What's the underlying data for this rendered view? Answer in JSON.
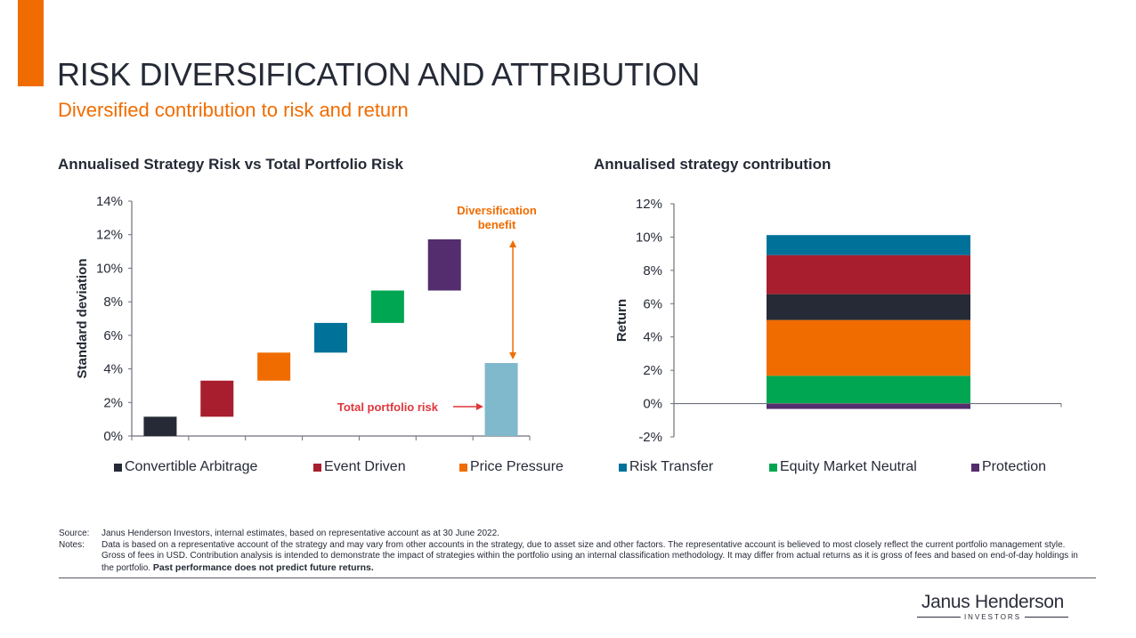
{
  "header": {
    "title": "RISK DIVERSIFICATION AND ATTRIBUTION",
    "subtitle": "Diversified contribution to risk and return",
    "accent_color": "#f06c00"
  },
  "colors": {
    "Convertible Arbitrage": "#252a36",
    "Event Driven": "#a81e2e",
    "Price Pressure": "#f06c00",
    "Risk Transfer": "#00729a",
    "Equity Market Neutral": "#00a651",
    "Protection": "#532d6d",
    "Total portfolio risk": "#80b8cc",
    "annotation_orange": "#f06c00",
    "annotation_red": "#e0373c"
  },
  "legend": [
    {
      "label": "Convertible Arbitrage",
      "color": "#252a36"
    },
    {
      "label": "Event Driven",
      "color": "#a81e2e"
    },
    {
      "label": "Price Pressure",
      "color": "#f06c00"
    },
    {
      "label": "Risk Transfer",
      "color": "#00729a"
    },
    {
      "label": "Equity Market Neutral",
      "color": "#00a651"
    },
    {
      "label": "Protection",
      "color": "#532d6d"
    }
  ],
  "chart_data": [
    {
      "type": "bar",
      "subtype": "waterfall",
      "title": "Annualised Strategy Risk vs Total Portfolio Risk",
      "xlabel": "",
      "ylabel": "Standard deviation",
      "ylim": [
        0,
        14
      ],
      "yticks": [
        "0%",
        "2%",
        "4%",
        "6%",
        "8%",
        "10%",
        "12%",
        "14%"
      ],
      "ytick_values": [
        0,
        2,
        4,
        6,
        8,
        10,
        12,
        14
      ],
      "grid": false,
      "categories": [
        "Convertible Arbitrage",
        "Event Driven",
        "Price Pressure",
        "Risk Transfer",
        "Equity Market Neutral",
        "Protection",
        "Total portfolio risk"
      ],
      "bars": [
        {
          "name": "Convertible Arbitrage",
          "start": 0.0,
          "end": 1.15
        },
        {
          "name": "Event Driven",
          "start": 1.15,
          "end": 3.3
        },
        {
          "name": "Price Pressure",
          "start": 3.3,
          "end": 4.97
        },
        {
          "name": "Risk Transfer",
          "start": 4.97,
          "end": 6.74
        },
        {
          "name": "Equity Market Neutral",
          "start": 6.74,
          "end": 8.67
        },
        {
          "name": "Protection",
          "start": 8.67,
          "end": 11.72
        },
        {
          "name": "Total portfolio risk",
          "start": 0.0,
          "end": 4.35
        }
      ],
      "annotations": [
        {
          "text_lines": [
            "Diversification",
            "benefit"
          ],
          "type": "double-arrow",
          "from": 4.35,
          "to": 11.72
        },
        {
          "text": "Total portfolio risk",
          "type": "arrow-right",
          "at": 1.7
        }
      ]
    },
    {
      "type": "bar",
      "subtype": "stacked",
      "title": "Annualised strategy contribution",
      "xlabel": "",
      "ylabel": "Return",
      "ylim": [
        -2,
        12
      ],
      "yticks": [
        "-2%",
        "0%",
        "2%",
        "4%",
        "6%",
        "8%",
        "10%",
        "12%"
      ],
      "ytick_values": [
        -2,
        0,
        2,
        4,
        6,
        8,
        10,
        12
      ],
      "grid": false,
      "legend_position": "bottom",
      "stack_order_positive": [
        "Equity Market Neutral",
        "Price Pressure",
        "Convertible Arbitrage",
        "Event Driven",
        "Risk Transfer"
      ],
      "series": [
        {
          "name": "Convertible Arbitrage",
          "value": 1.55
        },
        {
          "name": "Event Driven",
          "value": 2.35
        },
        {
          "name": "Price Pressure",
          "value": 3.35
        },
        {
          "name": "Risk Transfer",
          "value": 1.2
        },
        {
          "name": "Equity Market Neutral",
          "value": 1.67
        },
        {
          "name": "Protection",
          "value": -0.32
        }
      ],
      "total": 9.8
    }
  ],
  "footnotes": {
    "source_label": "Source:",
    "source_text": "Janus Henderson Investors, internal estimates, based on representative account as at 30 June 2022.",
    "notes_label": "Notes:",
    "notes_text": "Data is based on a representative account of the strategy and may vary from other accounts in the strategy, due to asset size and other factors. The representative account is believed to most closely reflect the current portfolio management style. Gross of fees in USD. Contribution analysis is intended to demonstrate the impact of strategies within the portfolio using an internal classification methodology. It may differ from actual returns as it is gross of fees and based on end-of-day holdings in the portfolio. ",
    "notes_bold": "Past performance does not predict future returns."
  },
  "logo": {
    "name": "Janus Henderson",
    "sub": "INVESTORS"
  }
}
